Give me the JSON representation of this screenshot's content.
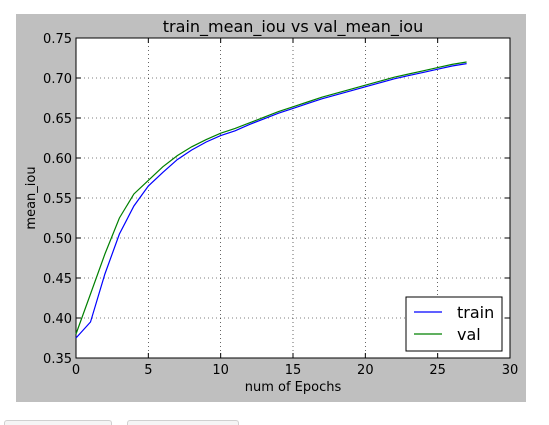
{
  "chart_data": {
    "type": "line",
    "title": "train_mean_iou vs val_mean_iou",
    "xlabel": "num of Epochs",
    "ylabel": "mean_iou",
    "xlim": [
      0,
      30
    ],
    "ylim": [
      0.35,
      0.75
    ],
    "xticks": [
      0,
      5,
      10,
      15,
      20,
      25,
      30
    ],
    "yticks": [
      0.35,
      0.4,
      0.45,
      0.5,
      0.55,
      0.6,
      0.65,
      0.7,
      0.75
    ],
    "ytick_labels": [
      "0.35",
      "0.40",
      "0.45",
      "0.50",
      "0.55",
      "0.60",
      "0.65",
      "0.70",
      "0.75"
    ],
    "grid": true,
    "legend_position": "lower right",
    "x": [
      0,
      1,
      2,
      3,
      4,
      5,
      6,
      7,
      8,
      9,
      10,
      11,
      12,
      13,
      14,
      15,
      16,
      17,
      18,
      19,
      20,
      21,
      22,
      23,
      24,
      25,
      26,
      27
    ],
    "series": [
      {
        "name": "train",
        "color": "#0000ff",
        "values": [
          0.375,
          0.395,
          0.455,
          0.505,
          0.54,
          0.565,
          0.582,
          0.598,
          0.61,
          0.62,
          0.628,
          0.634,
          0.642,
          0.649,
          0.656,
          0.662,
          0.668,
          0.674,
          0.679,
          0.684,
          0.689,
          0.694,
          0.699,
          0.703,
          0.707,
          0.711,
          0.715,
          0.718
        ]
      },
      {
        "name": "val",
        "color": "#008000",
        "values": [
          0.38,
          0.43,
          0.48,
          0.525,
          0.555,
          0.572,
          0.589,
          0.603,
          0.614,
          0.623,
          0.631,
          0.637,
          0.644,
          0.651,
          0.658,
          0.664,
          0.67,
          0.676,
          0.681,
          0.686,
          0.691,
          0.696,
          0.701,
          0.705,
          0.709,
          0.713,
          0.717,
          0.72
        ]
      }
    ]
  }
}
